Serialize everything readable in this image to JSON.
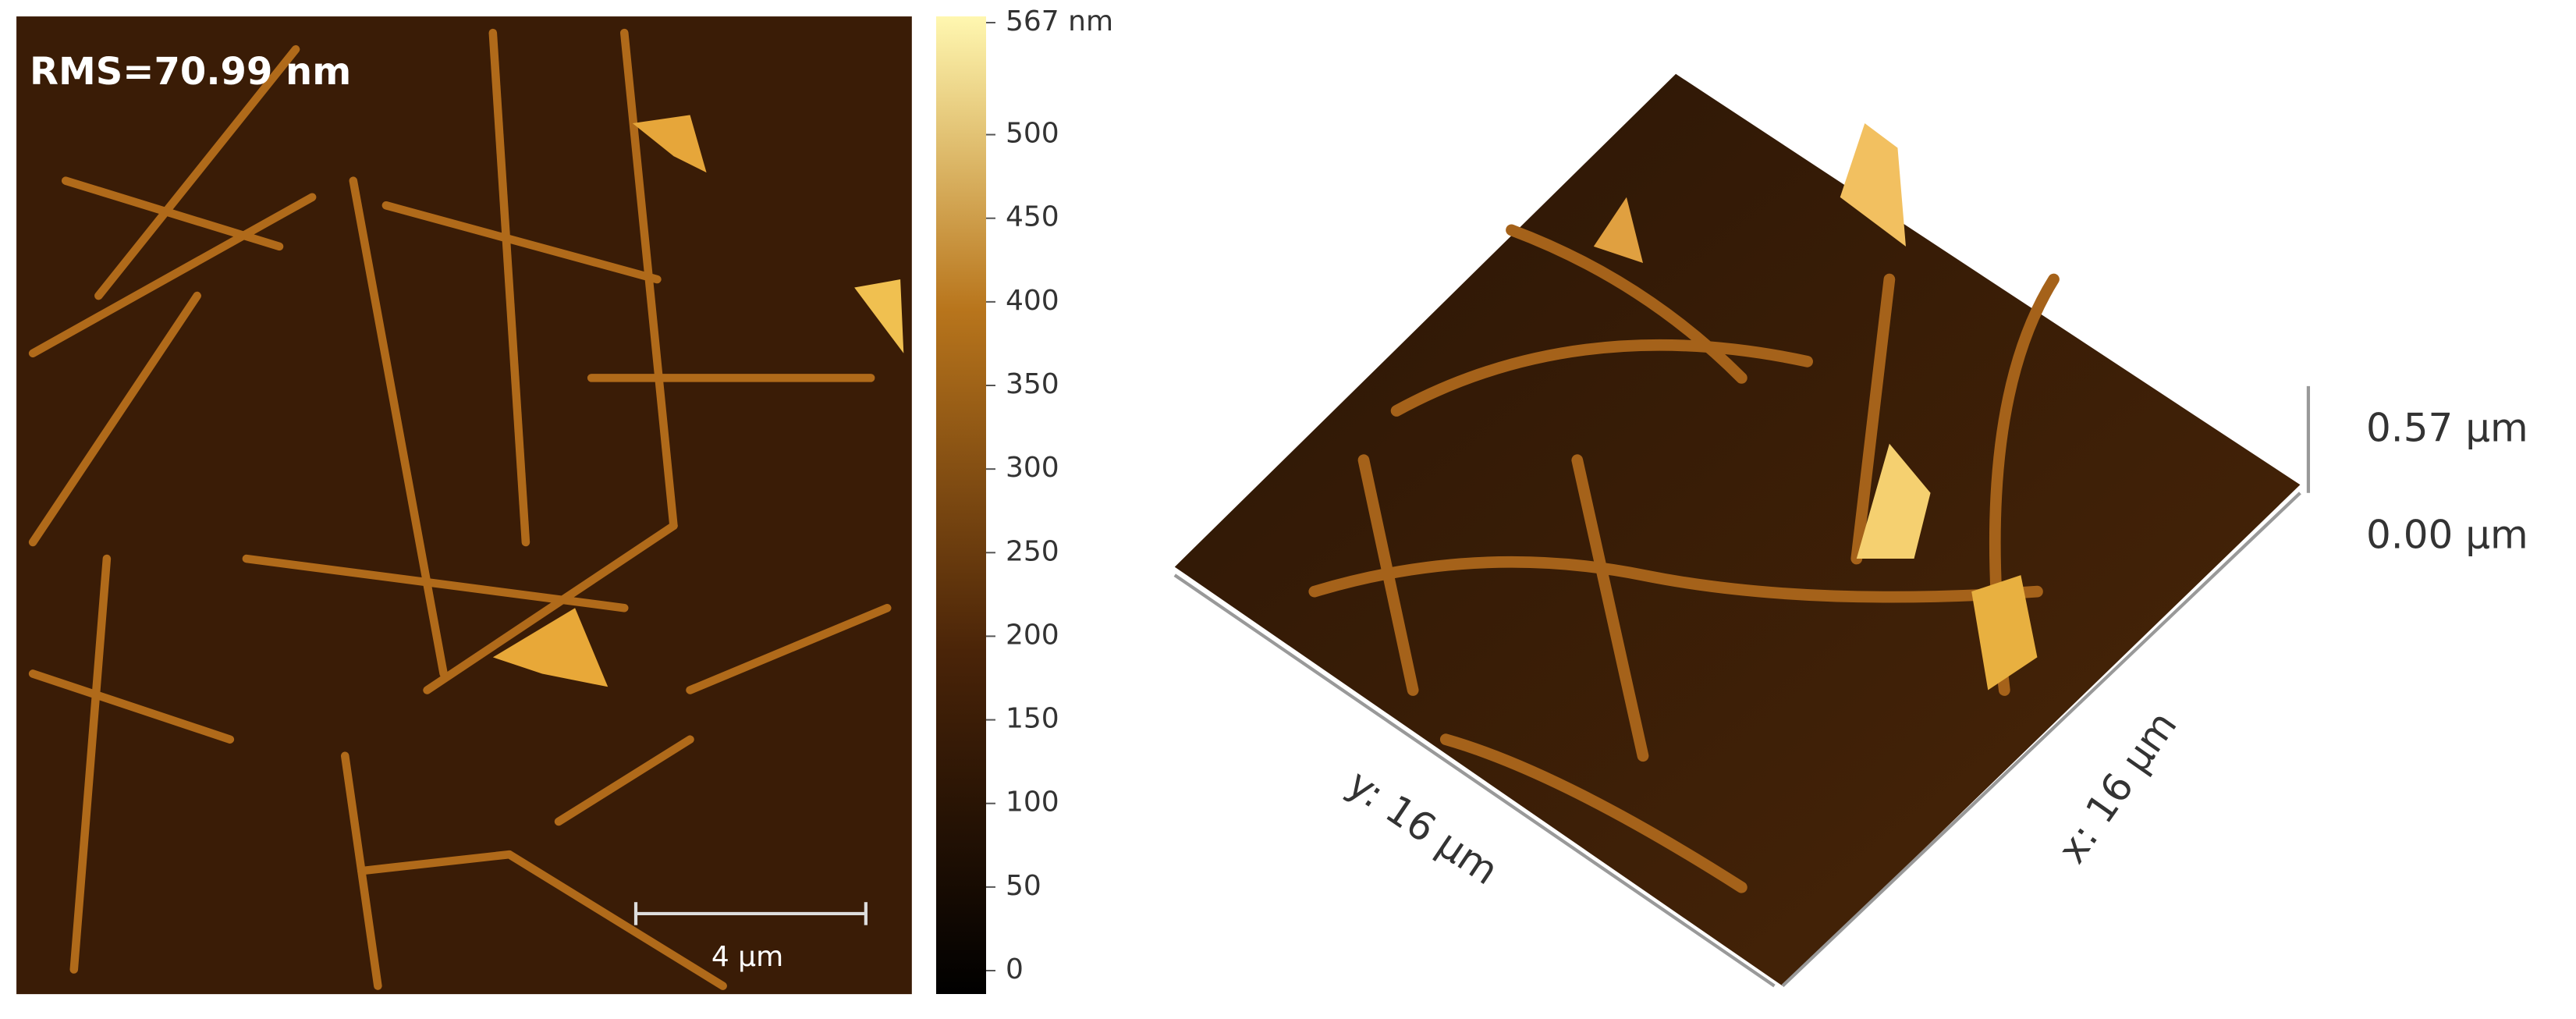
{
  "left_panel": {
    "rms_label": "RMS=70.99 nm",
    "scale_bar_label": "4 µm"
  },
  "colorbar": {
    "ticks": [
      {
        "value": 567,
        "label": "567 nm"
      },
      500,
      450,
      400,
      350,
      300,
      250,
      200,
      150,
      100,
      50,
      0
    ]
  },
  "right_panel": {
    "z_labels": [
      "0.57 µm",
      "0.00 µm"
    ],
    "y_axis_label": "y: 16 µm",
    "x_axis_label": "x: 16 µm"
  }
}
